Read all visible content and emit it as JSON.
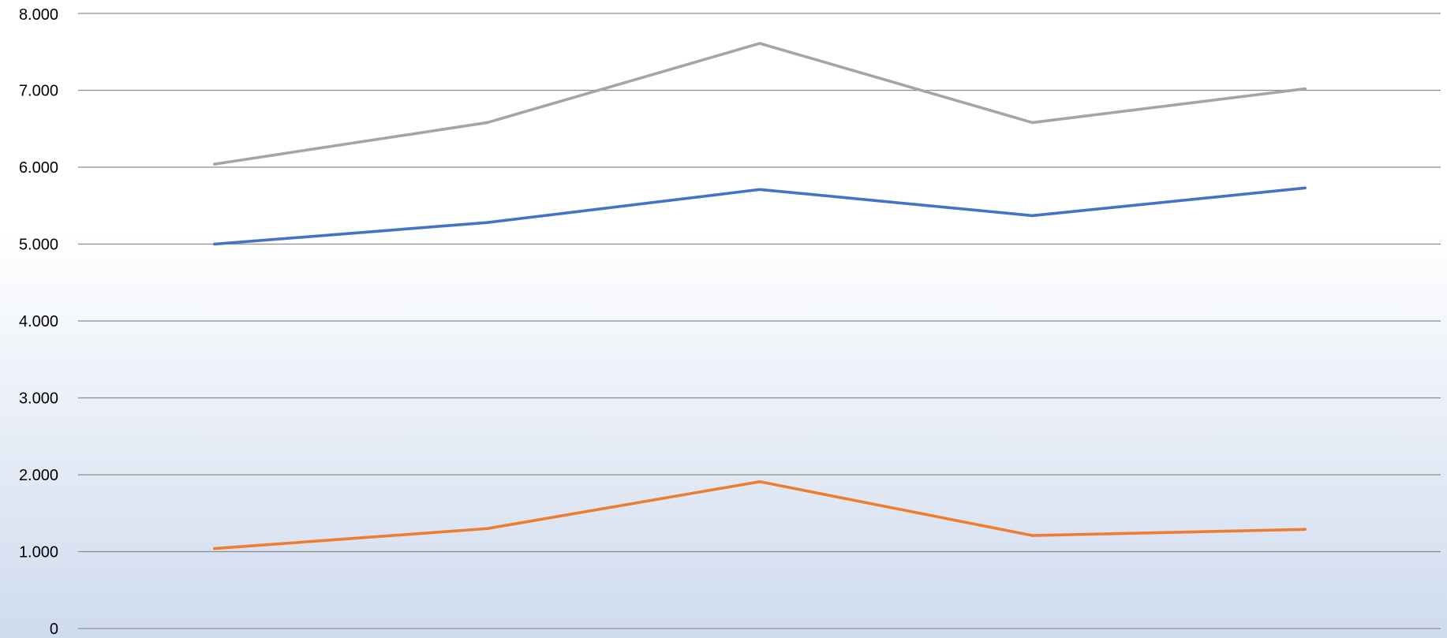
{
  "chart_data": {
    "type": "line",
    "title": "",
    "xlabel": "",
    "ylabel": "",
    "categories": [
      "",
      "",
      "",
      "",
      ""
    ],
    "ylim": [
      0,
      8000
    ],
    "y_ticks": [
      0,
      1000,
      2000,
      3000,
      4000,
      5000,
      6000,
      7000,
      8000
    ],
    "y_tick_labels": [
      "0",
      "1.000",
      "2.000",
      "3.000",
      "4.000",
      "5.000",
      "6.000",
      "7.000",
      "8.000"
    ],
    "grid": true,
    "legend": "none",
    "background_gradient": [
      "#ffffff",
      "#cfdbee"
    ],
    "series": [
      {
        "color": "#a5a5a5",
        "values": [
          6040,
          6580,
          7610,
          6580,
          7020
        ]
      },
      {
        "color": "#4472c4",
        "values": [
          5000,
          5280,
          5710,
          5370,
          5730
        ]
      },
      {
        "color": "#ed7d31",
        "values": [
          1040,
          1300,
          1910,
          1210,
          1290
        ]
      }
    ]
  }
}
